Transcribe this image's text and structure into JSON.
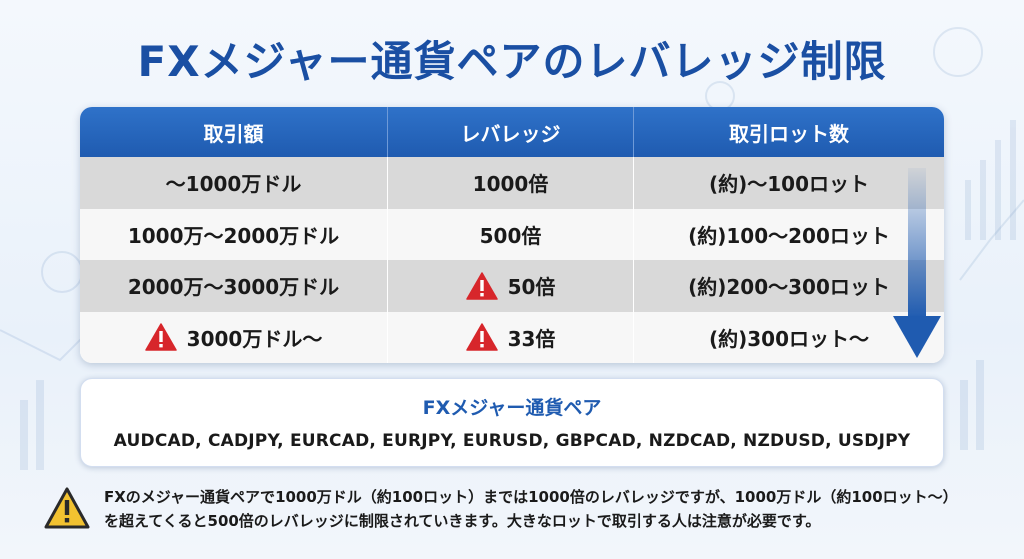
{
  "title": "FXメジャー通貨ペアのレバレッジ制限",
  "table": {
    "headers": [
      "取引額",
      "レバレッジ",
      "取引ロット数"
    ],
    "rows": [
      {
        "amount": "～1000万ドル",
        "leverage": "1000倍",
        "lots": "(約)～100ロット",
        "amount_warning": false,
        "leverage_warning": false
      },
      {
        "amount": "1000万～2000万ドル",
        "leverage": "500倍",
        "lots": "(約)100～200ロット",
        "amount_warning": false,
        "leverage_warning": false
      },
      {
        "amount": "2000万～3000万ドル",
        "leverage": "50倍",
        "lots": "(約)200～300ロット",
        "amount_warning": false,
        "leverage_warning": true
      },
      {
        "amount": "3000万ドル～",
        "leverage": "33倍",
        "lots": "(約)300ロット～",
        "amount_warning": true,
        "leverage_warning": true
      }
    ]
  },
  "pairs": {
    "title": "FXメジャー通貨ペア",
    "list": "AUDCAD, CADJPY, EURCAD, EURJPY, EURUSD, GBPCAD, NZDCAD, NZDUSD, USDJPY"
  },
  "note": {
    "line1": "FXのメジャー通貨ペアで1000万ドル（約100ロット）までは1000倍のレバレッジですが、1000万ドル（約100ロット～）",
    "line2": "を超えてくると500倍のレバレッジに制限されていきます。大きなロットで取引する人は注意が必要です。"
  },
  "colors": {
    "title": "#1a4fa3",
    "header": "#1f5bb0",
    "warning_red": "#d7262b",
    "note_yellow": "#f2c230",
    "arrow": "#1f5bb0"
  },
  "icons": {
    "warning": "warning-triangle-icon",
    "note": "caution-triangle-icon",
    "arrow": "down-arrow-icon"
  }
}
